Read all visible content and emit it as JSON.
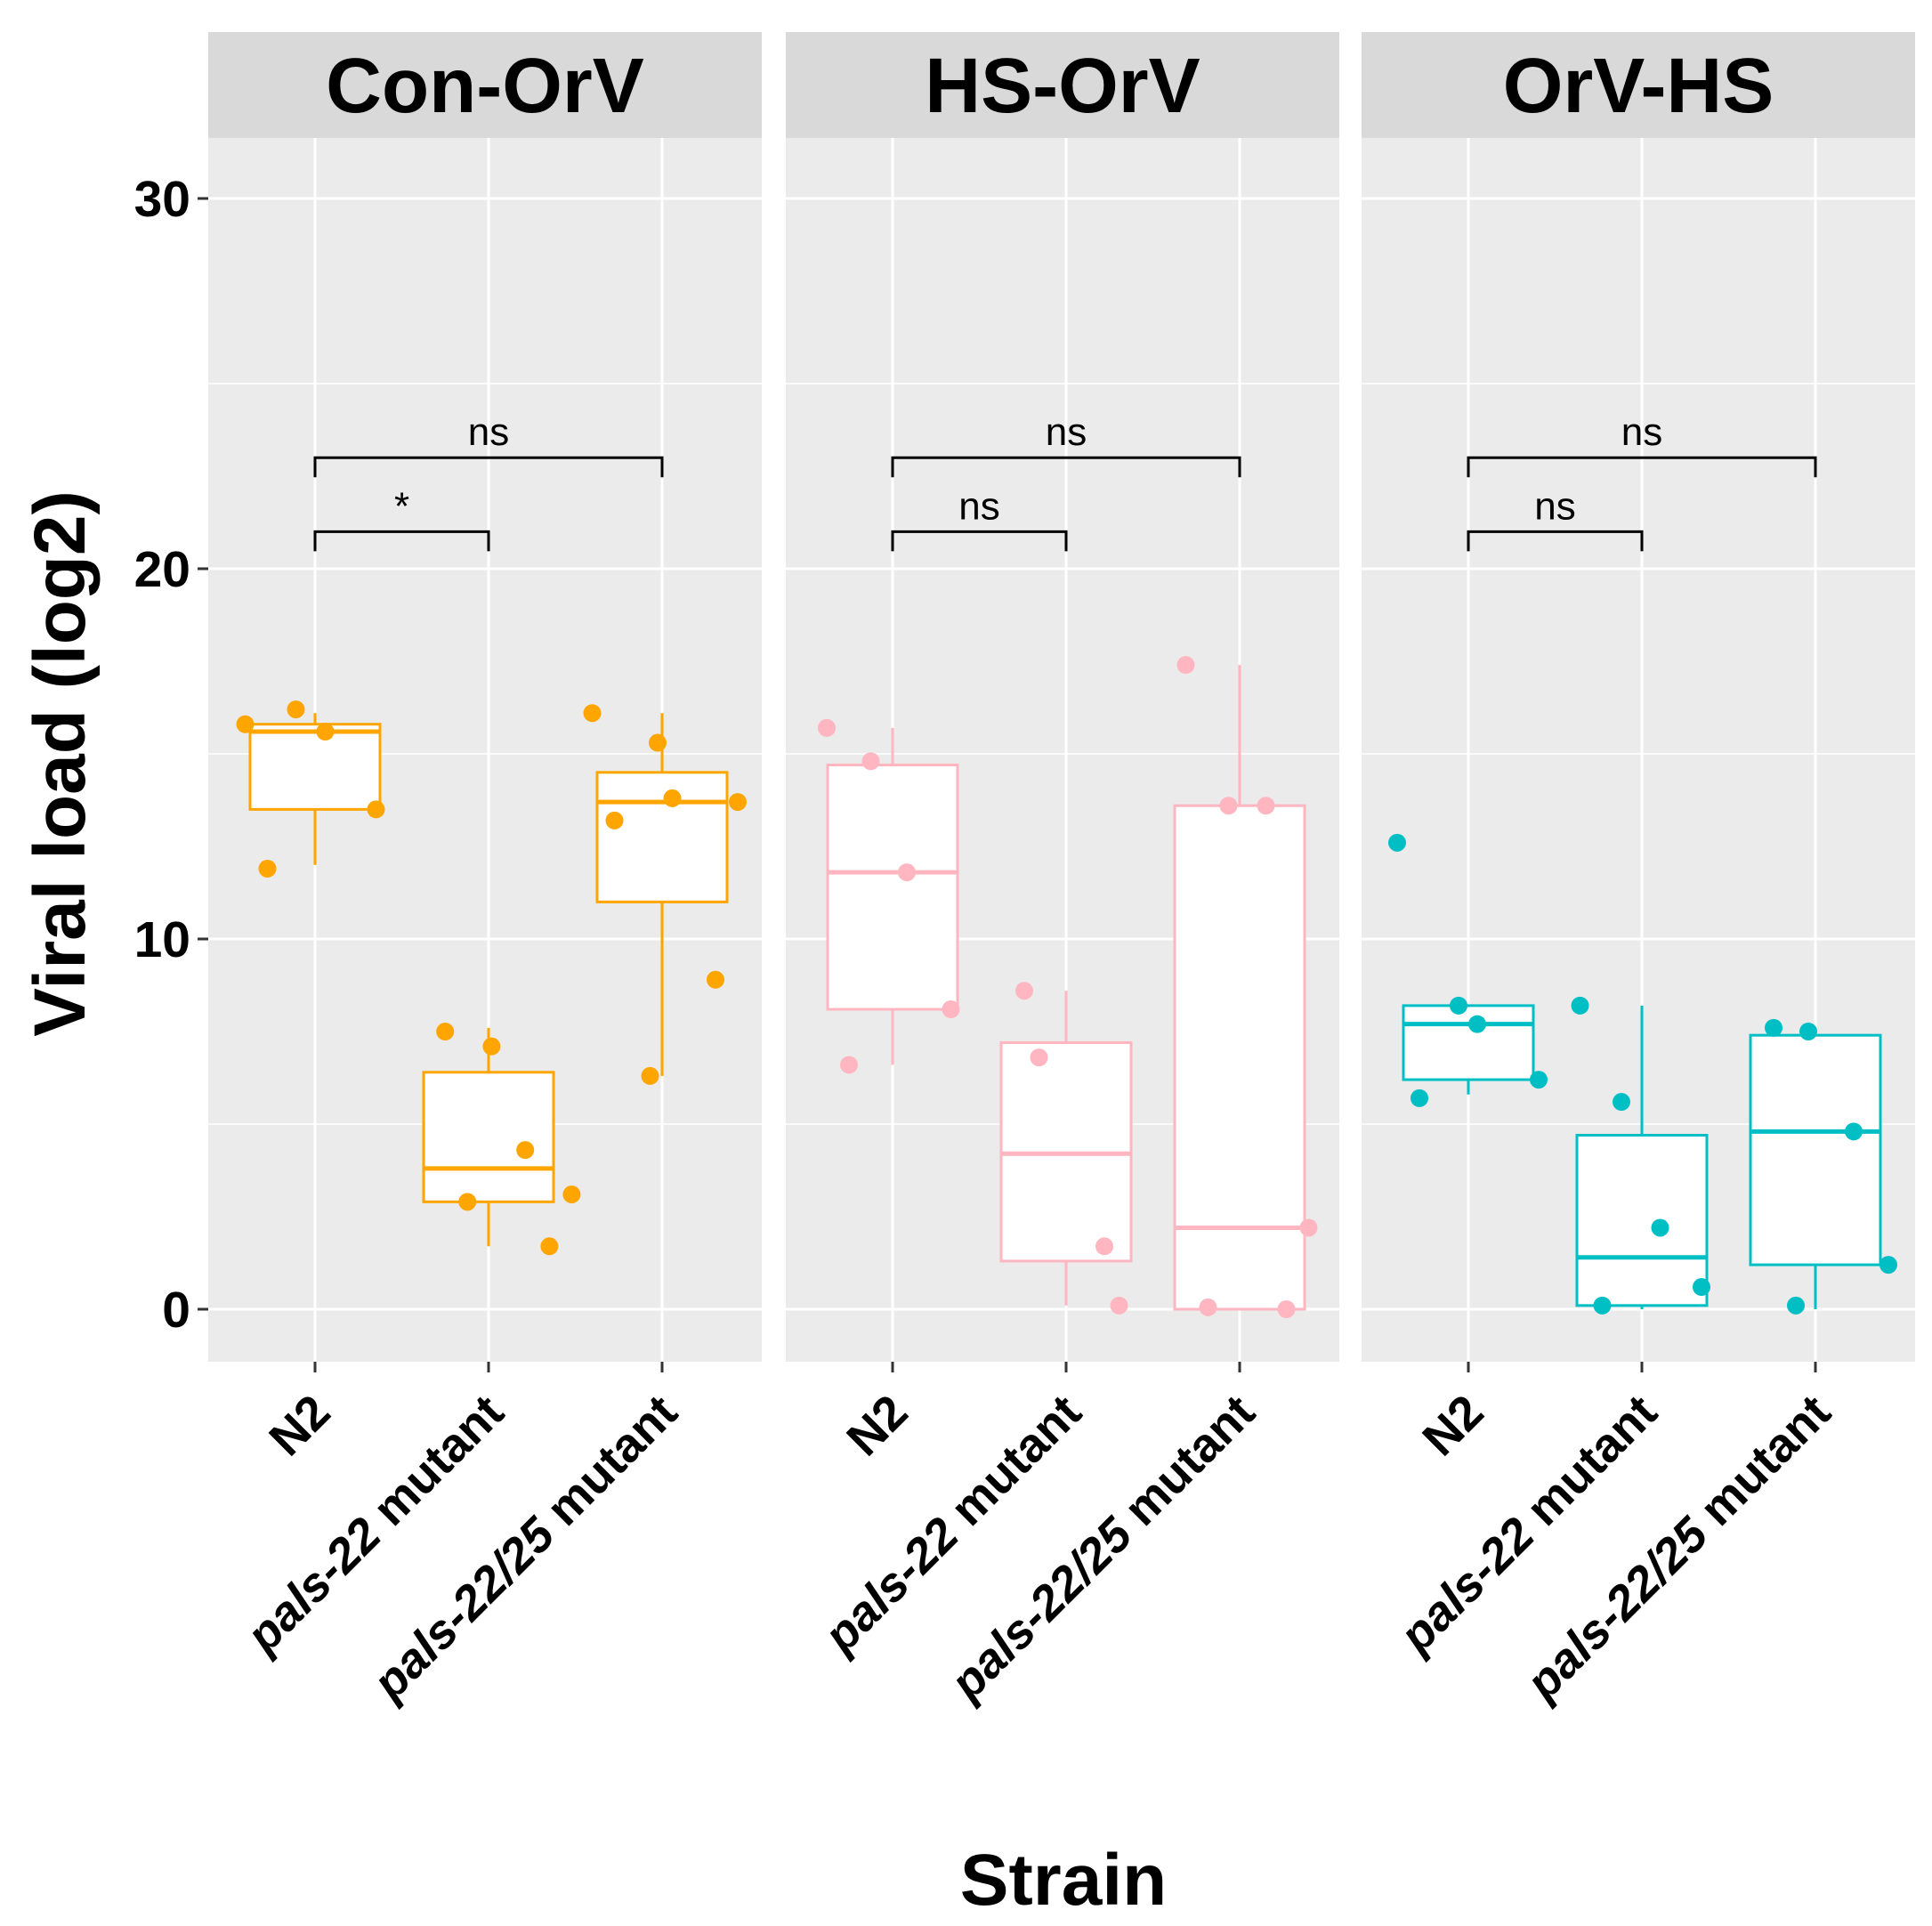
{
  "chart_data": {
    "type": "box",
    "xlabel": "Strain",
    "ylabel": "Viral load (log2)",
    "ylim": [
      -1.5,
      32
    ],
    "yticks": [
      0,
      10,
      20,
      30
    ],
    "categories": [
      "N2",
      "pals-22 mutant",
      "pals-22/25 mutant"
    ],
    "categories_italic_part": [
      "",
      "pals-22",
      "pals-22/25"
    ],
    "categories_plain_part": [
      "N2",
      " mutant",
      " mutant"
    ],
    "panels": [
      {
        "title": "Con-OrV",
        "color": "#FFA500",
        "boxes": [
          {
            "category": "N2",
            "q1": 13.5,
            "median": 15.6,
            "q3": 15.8,
            "whisker_low": 12.0,
            "whisker_high": 16.1,
            "points": [
              15.8,
              16.2,
              15.6,
              13.5,
              11.9
            ]
          },
          {
            "category": "pals-22 mutant",
            "q1": 2.9,
            "median": 3.8,
            "q3": 6.4,
            "whisker_low": 1.7,
            "whisker_high": 7.6,
            "points": [
              7.5,
              7.1,
              4.3,
              3.1,
              2.9,
              1.7
            ]
          },
          {
            "category": "pals-22/25 mutant",
            "q1": 11.0,
            "median": 13.7,
            "q3": 14.5,
            "whisker_low": 6.3,
            "whisker_high": 16.1,
            "points": [
              16.1,
              15.3,
              13.8,
              13.7,
              13.2,
              8.9,
              6.3
            ]
          }
        ],
        "comparisons": [
          {
            "from": "N2",
            "to": "pals-22 mutant",
            "label": "*",
            "y": 21.0
          },
          {
            "from": "N2",
            "to": "pals-22/25 mutant",
            "label": "ns",
            "y": 23.0
          }
        ]
      },
      {
        "title": "HS-OrV",
        "color": "#FFB6C1",
        "boxes": [
          {
            "category": "N2",
            "q1": 8.1,
            "median": 11.8,
            "q3": 14.7,
            "whisker_low": 6.6,
            "whisker_high": 15.7,
            "points": [
              15.7,
              14.8,
              11.8,
              8.1,
              6.6
            ]
          },
          {
            "category": "pals-22 mutant",
            "q1": 1.3,
            "median": 4.2,
            "q3": 7.2,
            "whisker_low": 0.1,
            "whisker_high": 8.6,
            "points": [
              8.6,
              6.8,
              1.7,
              0.1
            ]
          },
          {
            "category": "pals-22/25 mutant",
            "q1": 0.0,
            "median": 2.2,
            "q3": 13.6,
            "whisker_low": 0.0,
            "whisker_high": 17.4,
            "points": [
              17.4,
              13.6,
              13.6,
              2.2,
              0.05,
              0.0
            ]
          }
        ],
        "comparisons": [
          {
            "from": "N2",
            "to": "pals-22 mutant",
            "label": "ns",
            "y": 21.0
          },
          {
            "from": "N2",
            "to": "pals-22/25 mutant",
            "label": "ns",
            "y": 23.0
          }
        ]
      },
      {
        "title": "OrV-HS",
        "color": "#00BFC4",
        "boxes": [
          {
            "category": "N2",
            "q1": 6.2,
            "median": 7.7,
            "q3": 8.2,
            "whisker_low": 5.8,
            "whisker_high": 8.2,
            "points": [
              12.6,
              8.2,
              7.7,
              6.2,
              5.7
            ]
          },
          {
            "category": "pals-22 mutant",
            "q1": 0.1,
            "median": 1.4,
            "q3": 4.7,
            "whisker_low": 0.0,
            "whisker_high": 8.2,
            "points": [
              8.2,
              5.6,
              2.2,
              0.6,
              0.1
            ]
          },
          {
            "category": "pals-22/25 mutant",
            "q1": 1.2,
            "median": 4.8,
            "q3": 7.4,
            "whisker_low": 0.0,
            "whisker_high": 7.6,
            "points": [
              7.6,
              7.5,
              4.8,
              1.2,
              0.1
            ]
          }
        ],
        "comparisons": [
          {
            "from": "N2",
            "to": "pals-22 mutant",
            "label": "ns",
            "y": 21.0
          },
          {
            "from": "N2",
            "to": "pals-22/25 mutant",
            "label": "ns",
            "y": 23.0
          }
        ]
      }
    ]
  }
}
